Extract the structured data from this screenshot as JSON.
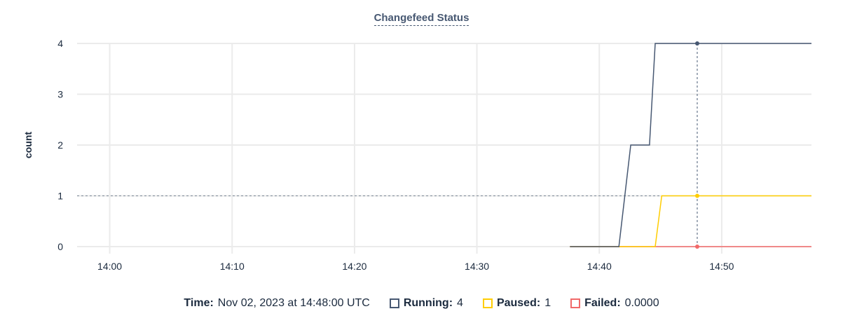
{
  "chart_data": {
    "type": "line",
    "title": "Changefeed Status",
    "ylabel": "count",
    "xlabel": "",
    "xlim": [
      "13:57:20",
      "14:57:20"
    ],
    "ylim": [
      0,
      4
    ],
    "yticks": [
      0,
      1,
      2,
      3,
      4
    ],
    "xticks": [
      "14:00",
      "14:10",
      "14:20",
      "14:30",
      "14:40",
      "14:50"
    ],
    "grid": true,
    "series": [
      {
        "name": "Running",
        "color": "#475872",
        "points": [
          [
            "14:37:36",
            0
          ],
          [
            "14:41:36",
            0
          ],
          [
            "14:42:34",
            2
          ],
          [
            "14:44:06",
            2
          ],
          [
            "14:44:34",
            4
          ],
          [
            "14:57:20",
            4
          ]
        ]
      },
      {
        "name": "Paused",
        "color": "#ffcd02",
        "points": [
          [
            "14:37:36",
            0
          ],
          [
            "14:44:34",
            0
          ],
          [
            "14:45:06",
            1
          ],
          [
            "14:57:20",
            1
          ]
        ]
      },
      {
        "name": "Failed",
        "color": "#f16969",
        "points": [
          [
            "14:37:36",
            0
          ],
          [
            "14:57:20",
            0
          ]
        ]
      }
    ],
    "hover": {
      "time": "14:48:00",
      "crosshair_y": 1
    }
  },
  "legend": {
    "time_label": "Time:",
    "time_value": "Nov 02, 2023 at 14:48:00 UTC",
    "items": [
      {
        "label": "Running:",
        "value": "4",
        "color": "#475872"
      },
      {
        "label": "Paused:",
        "value": "1",
        "color": "#ffcd02"
      },
      {
        "label": "Failed:",
        "value": "0.0000",
        "color": "#f16969"
      }
    ]
  }
}
